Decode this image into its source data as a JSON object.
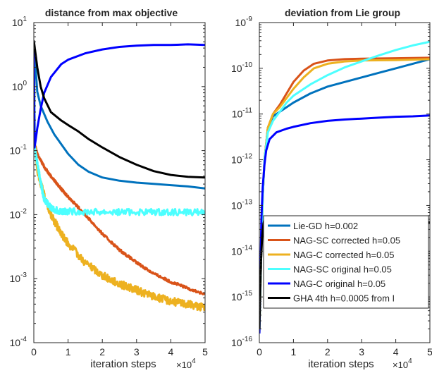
{
  "figure": {
    "xscale_note": "×10",
    "xscale_exp": "4",
    "legend": [
      {
        "label": "Lie-GD h=0.002",
        "color": "#0072BD"
      },
      {
        "label": "NAG-SC corrected h=0.05",
        "color": "#D95319"
      },
      {
        "label": "NAG-C corrected h=0.05",
        "color": "#EDB120"
      },
      {
        "label": "NAG-SC original h=0.05",
        "color": "#4DFFFF"
      },
      {
        "label": "NAG-C original h=0.05",
        "color": "#0000FF"
      },
      {
        "label": "GHA 4th h=0.0005 from I",
        "color": "#000000"
      }
    ]
  },
  "chart_data": [
    {
      "type": "line",
      "title": "distance from max objective",
      "xlabel": "iteration steps",
      "ylabel": "",
      "xlim": [
        0,
        5
      ],
      "ylim_log10": [
        -4,
        1
      ],
      "yscale": "log",
      "xticks": [
        "0",
        "1",
        "2",
        "3",
        "4",
        "5"
      ],
      "yticks": [
        {
          "base": "10",
          "exp": "1",
          "value": 1
        },
        {
          "base": "10",
          "exp": "0",
          "value": 0
        },
        {
          "base": "10",
          "exp": "-1",
          "value": -1
        },
        {
          "base": "10",
          "exp": "-2",
          "value": -2
        },
        {
          "base": "10",
          "exp": "-3",
          "value": -3
        },
        {
          "base": "10",
          "exp": "-4",
          "value": -4
        }
      ],
      "series": [
        {
          "color": "#0072BD",
          "noise": 0,
          "x": [
            0,
            0.05,
            0.1,
            0.2,
            0.4,
            0.6,
            0.8,
            1.0,
            1.3,
            1.6,
            2.0,
            2.5,
            3.0,
            3.5,
            4.0,
            4.5,
            5.0
          ],
          "log10y": [
            0.7,
            0.3,
            -0.08,
            -0.3,
            -0.55,
            -0.75,
            -0.9,
            -1.05,
            -1.22,
            -1.33,
            -1.42,
            -1.47,
            -1.5,
            -1.52,
            -1.54,
            -1.56,
            -1.59
          ]
        },
        {
          "color": "#D95319",
          "noise": 0.02,
          "x": [
            0,
            0.03,
            0.1,
            0.3,
            0.5,
            0.8,
            1.0,
            1.5,
            2.0,
            2.5,
            3.0,
            3.5,
            4.0,
            4.5,
            5.0
          ],
          "log10y": [
            0.7,
            -0.9,
            -1.05,
            -1.25,
            -1.4,
            -1.6,
            -1.72,
            -2.0,
            -2.3,
            -2.55,
            -2.75,
            -2.92,
            -3.05,
            -3.15,
            -3.25
          ]
        },
        {
          "color": "#EDB120",
          "noise": 0.06,
          "x": [
            0,
            0.03,
            0.1,
            0.3,
            0.5,
            0.8,
            1.0,
            1.5,
            2.0,
            2.5,
            3.0,
            3.5,
            4.0,
            4.5,
            5.0
          ],
          "log10y": [
            0.7,
            -0.9,
            -1.3,
            -1.7,
            -2.0,
            -2.3,
            -2.45,
            -2.75,
            -2.95,
            -3.08,
            -3.18,
            -3.28,
            -3.35,
            -3.4,
            -3.45
          ]
        },
        {
          "color": "#4DFFFF",
          "noise": 0.05,
          "x": [
            0,
            0.03,
            0.1,
            0.2,
            0.3,
            0.5,
            0.8,
            1.0,
            2.0,
            3.0,
            4.0,
            5.0
          ],
          "log10y": [
            0.7,
            -0.95,
            -1.2,
            -1.5,
            -1.75,
            -1.9,
            -1.95,
            -1.95,
            -1.96,
            -1.96,
            -1.96,
            -1.96
          ]
        },
        {
          "color": "#0000FF",
          "noise": 0,
          "x": [
            0,
            0.02,
            0.05,
            0.1,
            0.2,
            0.3,
            0.5,
            0.8,
            1.0,
            1.5,
            2.0,
            2.5,
            3.0,
            3.5,
            4.0,
            4.5,
            5.0
          ],
          "log10y": [
            0.7,
            -0.95,
            -0.85,
            -0.65,
            -0.35,
            -0.1,
            0.15,
            0.35,
            0.42,
            0.52,
            0.58,
            0.62,
            0.64,
            0.65,
            0.65,
            0.66,
            0.65
          ]
        },
        {
          "color": "#000000",
          "noise": 0,
          "x": [
            0,
            0.1,
            0.2,
            0.3,
            0.5,
            0.8,
            1.0,
            1.3,
            1.6,
            2.0,
            2.5,
            3.0,
            3.5,
            4.0,
            4.5,
            5.0
          ],
          "log10y": [
            0.72,
            0.3,
            0.0,
            -0.18,
            -0.4,
            -0.53,
            -0.6,
            -0.7,
            -0.82,
            -0.95,
            -1.1,
            -1.22,
            -1.32,
            -1.38,
            -1.41,
            -1.42
          ]
        }
      ]
    },
    {
      "type": "line",
      "title": "deviation from Lie group",
      "xlabel": "iteration steps",
      "ylabel": "",
      "xlim": [
        0,
        5
      ],
      "ylim_log10": [
        -16,
        -9
      ],
      "yscale": "log",
      "legend_position": "bottom-right",
      "xticks": [
        "0",
        "1",
        "2",
        "3",
        "4",
        "5"
      ],
      "yticks": [
        {
          "base": "10",
          "exp": "-9",
          "value": -9
        },
        {
          "base": "10",
          "exp": "-10",
          "value": -10
        },
        {
          "base": "10",
          "exp": "-11",
          "value": -11
        },
        {
          "base": "10",
          "exp": "-12",
          "value": -12
        },
        {
          "base": "10",
          "exp": "-13",
          "value": -13
        },
        {
          "base": "10",
          "exp": "-14",
          "value": -14
        },
        {
          "base": "10",
          "exp": "-15",
          "value": -15
        },
        {
          "base": "10",
          "exp": "-16",
          "value": -16
        }
      ],
      "series": [
        {
          "color": "#0072BD",
          "noise": 0,
          "x": [
            0,
            0.05,
            0.1,
            0.15,
            0.25,
            0.4,
            0.6,
            0.8,
            1.0,
            1.5,
            2.0,
            2.5,
            3.0,
            3.5,
            4.0,
            4.5,
            5.0
          ],
          "log10y": [
            -15.8,
            -14.2,
            -12.8,
            -12.0,
            -11.3,
            -11.05,
            -10.95,
            -10.85,
            -10.75,
            -10.55,
            -10.4,
            -10.3,
            -10.2,
            -10.1,
            -10.0,
            -9.9,
            -9.8
          ]
        },
        {
          "color": "#D95319",
          "noise": 0,
          "x": [
            0,
            0.05,
            0.1,
            0.15,
            0.25,
            0.4,
            0.6,
            0.8,
            1.0,
            1.3,
            1.6,
            2.0,
            2.5,
            3.0,
            4.0,
            5.0
          ],
          "log10y": [
            -15.8,
            -14.2,
            -12.8,
            -12.0,
            -11.3,
            -11.0,
            -10.8,
            -10.55,
            -10.3,
            -10.05,
            -9.9,
            -9.83,
            -9.8,
            -9.79,
            -9.78,
            -9.77
          ]
        },
        {
          "color": "#EDB120",
          "noise": 0,
          "x": [
            0,
            0.05,
            0.1,
            0.15,
            0.25,
            0.4,
            0.6,
            0.8,
            1.0,
            1.3,
            1.6,
            2.0,
            2.5,
            3.0,
            4.0,
            5.0
          ],
          "log10y": [
            -15.8,
            -14.2,
            -12.8,
            -12.0,
            -11.3,
            -11.0,
            -10.85,
            -10.65,
            -10.45,
            -10.2,
            -10.0,
            -9.9,
            -9.85,
            -9.83,
            -9.82,
            -9.8
          ]
        },
        {
          "color": "#4DFFFF",
          "noise": 0,
          "x": [
            0,
            0.05,
            0.1,
            0.15,
            0.25,
            0.4,
            0.6,
            0.8,
            1.0,
            1.5,
            2.0,
            2.5,
            3.0,
            3.5,
            4.0,
            4.5,
            5.0
          ],
          "log10y": [
            -15.8,
            -14.2,
            -12.8,
            -12.0,
            -11.4,
            -11.15,
            -10.95,
            -10.75,
            -10.6,
            -10.35,
            -10.15,
            -9.98,
            -9.85,
            -9.72,
            -9.6,
            -9.5,
            -9.42
          ]
        },
        {
          "color": "#0000FF",
          "noise": 0,
          "x": [
            0,
            0.03,
            0.06,
            0.1,
            0.15,
            0.2,
            0.3,
            0.5,
            0.8,
            1.0,
            1.5,
            2.0,
            2.5,
            3.0,
            3.5,
            4.0,
            4.5,
            5.0
          ],
          "log10y": [
            -15.8,
            -14.5,
            -13.3,
            -12.6,
            -12.1,
            -11.8,
            -11.55,
            -11.4,
            -11.32,
            -11.28,
            -11.2,
            -11.15,
            -11.12,
            -11.1,
            -11.08,
            -11.06,
            -11.05,
            -11.03
          ]
        },
        {
          "color": "#000000",
          "noise": 0,
          "x": [
            0,
            0.02,
            0.05,
            0.08,
            0.12,
            0.15,
            0.2,
            0.25,
            0.3,
            0.4,
            0.5,
            0.8,
            1.0,
            1.5,
            2.0,
            2.5,
            3.0,
            3.5,
            4.0,
            4.5,
            5.0
          ],
          "log10y": [
            -15.7,
            -15.0,
            -14.2,
            -13.7,
            -13.4,
            -13.3,
            -13.32,
            -13.38,
            -13.42,
            -13.42,
            -13.41,
            -13.41,
            -13.4,
            -13.4,
            -13.4,
            -13.39,
            -13.39,
            -13.38,
            -13.38,
            -13.37,
            -13.37
          ]
        }
      ]
    }
  ]
}
